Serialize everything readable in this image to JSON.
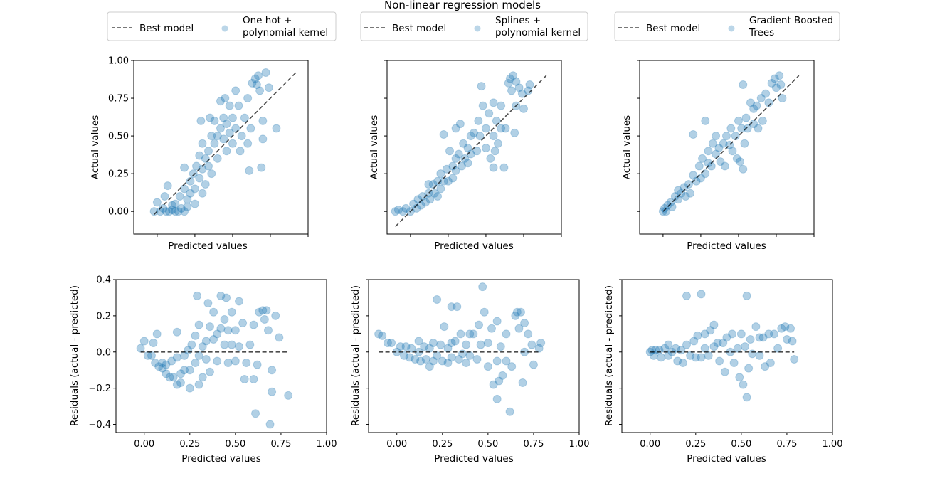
{
  "title": "Non-linear regression models",
  "colors": {
    "points": "#1f77b4",
    "best_line": "#000000",
    "legend_border": "#cccccc"
  },
  "legends": [
    {
      "line_label": "Best model",
      "marker_label": [
        "One hot +",
        "polynomial kernel"
      ]
    },
    {
      "line_label": "Best model",
      "marker_label": [
        "Splines +",
        "polynomial kernel"
      ]
    },
    {
      "line_label": "Best model",
      "marker_label": [
        "Gradient Boosted",
        "Trees"
      ]
    }
  ],
  "chart_data": [
    {
      "type": "scatter",
      "row": "top",
      "title": "",
      "xlabel": "Predicted values",
      "ylabel": "Actual values",
      "xlim": [
        -0.155,
        1.0
      ],
      "ylim": [
        -0.15,
        1.0
      ],
      "xticks": [
        0,
        0.25,
        0.5,
        0.75,
        1.0
      ],
      "yticks": [
        0,
        0.25,
        0.5,
        0.75,
        1.0
      ],
      "ytick_labels_shown_on_first_panel": [
        "0.00",
        "0.25",
        "0.50",
        "0.75",
        "1.00"
      ],
      "reference_line": "Best model (y = x), dashed",
      "series_note": "each panel plots the model's (predicted, actual) pairs"
    },
    {
      "type": "scatter",
      "row": "bottom",
      "title": "",
      "xlabel": "Predicted values",
      "ylabel": "Residuals (actual - predicted)",
      "xlim": [
        -0.155,
        1.0
      ],
      "ylim": [
        -0.445,
        0.4
      ],
      "xticks": [
        0,
        0.25,
        0.5,
        0.75,
        1.0
      ],
      "xtick_labels": [
        "0.00",
        "0.25",
        "0.50",
        "0.75",
        "1.00"
      ],
      "yticks": [
        -0.4,
        -0.2,
        0,
        0.2,
        0.4
      ],
      "ytick_labels_shown_on_first_panel": [
        "−0.4",
        "−0.2",
        "0.0",
        "0.2",
        "0.4"
      ],
      "reference_line": "Best model (residual = 0), dashed"
    }
  ],
  "models": [
    {
      "name": "One hot + polynomial kernel",
      "points_predicted_actual": [
        [
          -0.02,
          0.0
        ],
        [
          0.0,
          0.06
        ],
        [
          0.02,
          0.0
        ],
        [
          0.04,
          0.02
        ],
        [
          0.06,
          0.0
        ],
        [
          0.08,
          0.0
        ],
        [
          0.1,
          0.01
        ],
        [
          0.12,
          0.0
        ],
        [
          0.14,
          0.0
        ],
        [
          0.16,
          0.02
        ],
        [
          0.18,
          0.0
        ],
        [
          0.2,
          0.03
        ],
        [
          0.07,
          0.17
        ],
        [
          0.1,
          0.04
        ],
        [
          0.15,
          0.1
        ],
        [
          0.18,
          0.15
        ],
        [
          0.2,
          0.08
        ],
        [
          0.22,
          0.12
        ],
        [
          0.22,
          0.2
        ],
        [
          0.24,
          0.25
        ],
        [
          0.25,
          0.15
        ],
        [
          0.26,
          0.3
        ],
        [
          0.28,
          0.22
        ],
        [
          0.28,
          0.37
        ],
        [
          0.3,
          0.28
        ],
        [
          0.3,
          0.45
        ],
        [
          0.32,
          0.35
        ],
        [
          0.32,
          0.18
        ],
        [
          0.34,
          0.4
        ],
        [
          0.34,
          0.3
        ],
        [
          0.36,
          0.5
        ],
        [
          0.36,
          0.25
        ],
        [
          0.38,
          0.45
        ],
        [
          0.38,
          0.6
        ],
        [
          0.4,
          0.5
        ],
        [
          0.4,
          0.35
        ],
        [
          0.42,
          0.55
        ],
        [
          0.42,
          0.73
        ],
        [
          0.44,
          0.48
        ],
        [
          0.44,
          0.62
        ],
        [
          0.46,
          0.58
        ],
        [
          0.46,
          0.4
        ],
        [
          0.48,
          0.7
        ],
        [
          0.48,
          0.52
        ],
        [
          0.5,
          0.62
        ],
        [
          0.5,
          0.45
        ],
        [
          0.52,
          0.55
        ],
        [
          0.52,
          0.8
        ],
        [
          0.54,
          0.7
        ],
        [
          0.55,
          0.4
        ],
        [
          0.56,
          0.5
        ],
        [
          0.58,
          0.62
        ],
        [
          0.6,
          0.75
        ],
        [
          0.6,
          0.45
        ],
        [
          0.62,
          0.55
        ],
        [
          0.63,
          0.85
        ],
        [
          0.65,
          0.88
        ],
        [
          0.66,
          0.84
        ],
        [
          0.67,
          0.9
        ],
        [
          0.68,
          0.8
        ],
        [
          0.7,
          0.6
        ],
        [
          0.7,
          0.48
        ],
        [
          0.72,
          0.92
        ],
        [
          0.74,
          0.82
        ],
        [
          0.69,
          0.29
        ],
        [
          0.79,
          0.55
        ],
        [
          0.61,
          0.27
        ],
        [
          0.25,
          0.05
        ],
        [
          0.3,
          0.12
        ],
        [
          0.12,
          0.05
        ],
        [
          0.05,
          0.1
        ],
        [
          0.18,
          0.29
        ],
        [
          0.35,
          0.62
        ],
        [
          0.45,
          0.75
        ],
        [
          0.29,
          0.6
        ]
      ]
    },
    {
      "name": "Splines + polynomial kernel",
      "points_predicted_actual": [
        [
          -0.1,
          0.0
        ],
        [
          -0.08,
          0.01
        ],
        [
          -0.05,
          0.0
        ],
        [
          -0.03,
          0.02
        ],
        [
          0.0,
          0.0
        ],
        [
          0.02,
          0.05
        ],
        [
          0.04,
          0.02
        ],
        [
          0.05,
          0.08
        ],
        [
          0.07,
          0.04
        ],
        [
          0.08,
          0.1
        ],
        [
          0.1,
          0.06
        ],
        [
          0.12,
          0.12
        ],
        [
          0.13,
          0.08
        ],
        [
          0.15,
          0.18
        ],
        [
          0.16,
          0.12
        ],
        [
          0.18,
          0.2
        ],
        [
          0.18,
          0.1
        ],
        [
          0.2,
          0.25
        ],
        [
          0.2,
          0.15
        ],
        [
          0.22,
          0.51
        ],
        [
          0.22,
          0.2
        ],
        [
          0.24,
          0.28
        ],
        [
          0.25,
          0.2
        ],
        [
          0.26,
          0.4
        ],
        [
          0.28,
          0.3
        ],
        [
          0.28,
          0.22
        ],
        [
          0.3,
          0.35
        ],
        [
          0.3,
          0.27
        ],
        [
          0.32,
          0.38
        ],
        [
          0.33,
          0.58
        ],
        [
          0.34,
          0.3
        ],
        [
          0.35,
          0.45
        ],
        [
          0.36,
          0.35
        ],
        [
          0.38,
          0.42
        ],
        [
          0.38,
          0.32
        ],
        [
          0.4,
          0.5
        ],
        [
          0.4,
          0.38
        ],
        [
          0.42,
          0.52
        ],
        [
          0.44,
          0.4
        ],
        [
          0.45,
          0.6
        ],
        [
          0.46,
          0.5
        ],
        [
          0.47,
          0.83
        ],
        [
          0.48,
          0.7
        ],
        [
          0.5,
          0.55
        ],
        [
          0.5,
          0.42
        ],
        [
          0.52,
          0.65
        ],
        [
          0.53,
          0.35
        ],
        [
          0.55,
          0.72
        ],
        [
          0.55,
          0.5
        ],
        [
          0.57,
          0.6
        ],
        [
          0.58,
          0.45
        ],
        [
          0.6,
          0.7
        ],
        [
          0.6,
          0.55
        ],
        [
          0.62,
          0.29
        ],
        [
          0.63,
          0.55
        ],
        [
          0.65,
          0.85
        ],
        [
          0.66,
          0.88
        ],
        [
          0.67,
          0.8
        ],
        [
          0.68,
          0.9
        ],
        [
          0.7,
          0.86
        ],
        [
          0.7,
          0.7
        ],
        [
          0.72,
          0.82
        ],
        [
          0.74,
          0.78
        ],
        [
          0.75,
          0.68
        ],
        [
          0.78,
          0.8
        ],
        [
          0.79,
          0.84
        ],
        [
          0.69,
          0.52
        ],
        [
          0.56,
          0.4
        ],
        [
          0.12,
          0.18
        ],
        [
          0.3,
          0.55
        ],
        [
          0.55,
          0.29
        ]
      ]
    },
    {
      "name": "Gradient Boosted Trees",
      "points_predicted_actual": [
        [
          0.0,
          0.0
        ],
        [
          0.01,
          0.02
        ],
        [
          0.02,
          0.0
        ],
        [
          0.03,
          0.04
        ],
        [
          0.05,
          0.06
        ],
        [
          0.06,
          0.03
        ],
        [
          0.08,
          0.1
        ],
        [
          0.1,
          0.08
        ],
        [
          0.1,
          0.14
        ],
        [
          0.12,
          0.12
        ],
        [
          0.14,
          0.16
        ],
        [
          0.15,
          0.1
        ],
        [
          0.17,
          0.18
        ],
        [
          0.18,
          0.12
        ],
        [
          0.2,
          0.51
        ],
        [
          0.2,
          0.24
        ],
        [
          0.22,
          0.2
        ],
        [
          0.24,
          0.3
        ],
        [
          0.25,
          0.22
        ],
        [
          0.26,
          0.35
        ],
        [
          0.28,
          0.6
        ],
        [
          0.28,
          0.25
        ],
        [
          0.3,
          0.32
        ],
        [
          0.3,
          0.4
        ],
        [
          0.32,
          0.3
        ],
        [
          0.33,
          0.45
        ],
        [
          0.35,
          0.38
        ],
        [
          0.35,
          0.5
        ],
        [
          0.37,
          0.42
        ],
        [
          0.38,
          0.33
        ],
        [
          0.4,
          0.45
        ],
        [
          0.41,
          0.3
        ],
        [
          0.42,
          0.5
        ],
        [
          0.44,
          0.44
        ],
        [
          0.45,
          0.55
        ],
        [
          0.46,
          0.4
        ],
        [
          0.48,
          0.5
        ],
        [
          0.49,
          0.35
        ],
        [
          0.5,
          0.6
        ],
        [
          0.51,
          0.33
        ],
        [
          0.52,
          0.55
        ],
        [
          0.53,
          0.84
        ],
        [
          0.53,
          0.28
        ],
        [
          0.54,
          0.45
        ],
        [
          0.55,
          0.62
        ],
        [
          0.56,
          0.55
        ],
        [
          0.58,
          0.72
        ],
        [
          0.6,
          0.58
        ],
        [
          0.6,
          0.68
        ],
        [
          0.62,
          0.7
        ],
        [
          0.63,
          0.55
        ],
        [
          0.65,
          0.75
        ],
        [
          0.66,
          0.6
        ],
        [
          0.68,
          0.78
        ],
        [
          0.7,
          0.72
        ],
        [
          0.72,
          0.85
        ],
        [
          0.74,
          0.88
        ],
        [
          0.75,
          0.82
        ],
        [
          0.77,
          0.9
        ],
        [
          0.78,
          0.84
        ],
        [
          0.79,
          0.75
        ]
      ]
    }
  ]
}
